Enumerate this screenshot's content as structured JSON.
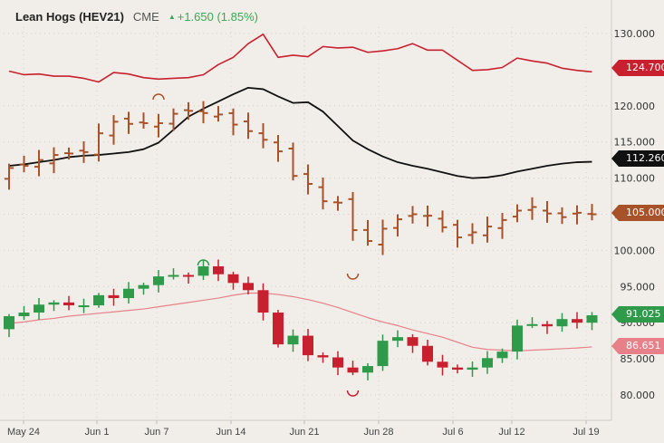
{
  "header": {
    "title": "Lean Hogs (HEV21)",
    "exchange": "CME",
    "change_icon": "triangle-up-icon",
    "change": "+1.650 (1.85%)"
  },
  "tags": {
    "red_line": {
      "value": "124.700",
      "color": "#c8202f"
    },
    "black_line": {
      "value": "112.260",
      "color": "#111111"
    },
    "ohlc": {
      "value": "105.000",
      "color": "#a8522a"
    },
    "candles": {
      "value": "91.025",
      "color": "#2e9a4a"
    },
    "pink_line": {
      "value": "86.651",
      "color": "#e8808a"
    }
  },
  "chart_data": {
    "type": "line",
    "title": "Lean Hogs (HEV21)",
    "xlabel": "",
    "ylabel": "",
    "ylim": [
      78,
      133
    ],
    "y_ticks": [
      "130.000",
      "120.000",
      "115.000",
      "110.000",
      "105.000",
      "100.000",
      "95.000",
      "90.000",
      "85.000",
      "80.000"
    ],
    "x_ticks": [
      "May 24",
      "Jun 1",
      "Jun 7",
      "Jun 14",
      "Jun 21",
      "Jun 28",
      "Jul 6",
      "Jul 12",
      "Jul 19"
    ],
    "grid": true,
    "legend": "none",
    "series": [
      {
        "name": "Red line",
        "color": "#c8202f",
        "last": 124.7,
        "values": [
          124.8,
          124.3,
          124.4,
          124.1,
          124.1,
          123.8,
          123.3,
          124.6,
          124.4,
          123.9,
          123.7,
          123.8,
          123.9,
          124.3,
          125.7,
          126.7,
          128.6,
          129.9,
          126.7,
          127.0,
          126.8,
          128.2,
          128.0,
          128.1,
          127.4,
          127.6,
          127.9,
          128.6,
          127.7,
          127.7,
          126.3,
          124.9,
          125.0,
          125.3,
          126.6,
          126.2,
          125.9,
          125.2,
          124.9,
          124.7
        ]
      },
      {
        "name": "Black line (moving average)",
        "color": "#111111",
        "last": 112.26,
        "values": [
          111.7,
          111.9,
          112.2,
          112.5,
          112.9,
          113.1,
          113.2,
          113.4,
          113.6,
          114.0,
          114.9,
          116.7,
          118.5,
          119.6,
          120.6,
          121.6,
          122.5,
          122.3,
          121.3,
          120.4,
          120.5,
          119.2,
          117.2,
          115.2,
          114.0,
          113.0,
          112.2,
          111.7,
          111.3,
          110.8,
          110.3,
          110.0,
          110.1,
          110.4,
          110.9,
          111.3,
          111.7,
          112.0,
          112.2,
          112.26
        ]
      },
      {
        "name": "OHLC bars (brown)",
        "color": "#a8522a",
        "last": 105.0,
        "close": [
          111.4,
          111.7,
          112.5,
          113.2,
          113.4,
          113.6,
          116.2,
          117.8,
          117.5,
          117.6,
          117.6,
          118.9,
          119.3,
          119.0,
          118.8,
          117.4,
          116.5,
          115.3,
          113.7,
          110.3,
          109.2,
          106.8,
          106.6,
          102.8,
          101.3,
          103.0,
          104.3,
          105.0,
          104.8,
          103.2,
          101.8,
          102.5,
          103.3,
          104.2,
          105.5,
          106.0,
          105.1,
          104.6,
          105.2,
          105.0
        ]
      },
      {
        "name": "Candles",
        "color_up": "#2e9a4a",
        "color_down": "#c8202f",
        "last": 91.025,
        "close": [
          90.9,
          91.4,
          92.5,
          92.8,
          92.4,
          92.4,
          93.8,
          93.4,
          94.7,
          95.2,
          96.4,
          96.6,
          96.5,
          97.8,
          96.7,
          95.5,
          94.5,
          91.4,
          87.0,
          88.2,
          85.5,
          85.2,
          83.8,
          83.1,
          84.0,
          87.5,
          88.0,
          86.8,
          84.6,
          83.8,
          83.5,
          83.8,
          85.1,
          86.0,
          89.6,
          89.8,
          89.5,
          90.5,
          90.0,
          91.025
        ]
      },
      {
        "name": "Pink line (moving average)",
        "color": "#e8808a",
        "last": 86.651,
        "values": [
          89.9,
          90.1,
          90.4,
          90.6,
          90.9,
          91.1,
          91.3,
          91.5,
          91.7,
          91.9,
          92.2,
          92.5,
          92.8,
          93.1,
          93.4,
          93.8,
          94.1,
          94.1,
          93.9,
          93.6,
          93.2,
          92.7,
          92.1,
          91.4,
          90.7,
          90.1,
          89.6,
          89.0,
          88.5,
          88.0,
          87.3,
          86.6,
          86.3,
          86.2,
          86.1,
          86.2,
          86.3,
          86.4,
          86.5,
          86.651
        ]
      }
    ]
  }
}
